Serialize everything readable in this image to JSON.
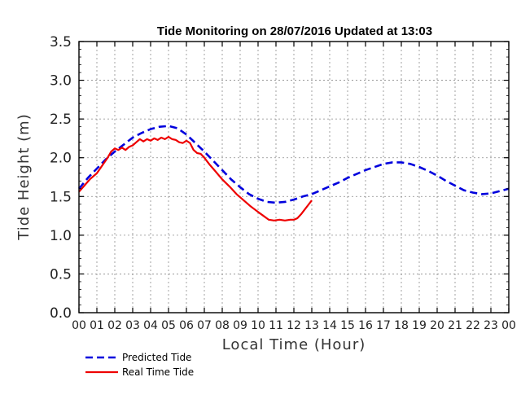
{
  "chart_data": {
    "type": "line",
    "title": "Tide Monitoring on 28/07/2016   Updated at  13:03",
    "xlabel": "Local Time (Hour)",
    "ylabel": "Tide Height (m)",
    "xlim": [
      0,
      24
    ],
    "ylim": [
      0,
      3.5
    ],
    "grid": true,
    "legend_position": "bottom-left",
    "x_ticks": [
      "00",
      "01",
      "02",
      "03",
      "04",
      "05",
      "06",
      "07",
      "08",
      "09",
      "10",
      "11",
      "12",
      "13",
      "14",
      "15",
      "16",
      "17",
      "18",
      "19",
      "20",
      "21",
      "22",
      "23",
      "00"
    ],
    "y_ticks": [
      "0.0",
      "0.5",
      "1.0",
      "1.5",
      "2.0",
      "2.5",
      "3.0",
      "3.5"
    ],
    "series": [
      {
        "name": "Predicted Tide",
        "color": "#0000dd",
        "style": "dashed",
        "x": [
          0,
          0.5,
          1,
          1.5,
          2,
          2.5,
          3,
          3.5,
          4,
          4.5,
          5,
          5.5,
          6,
          6.5,
          7,
          7.5,
          8,
          8.5,
          9,
          9.5,
          10,
          10.5,
          11,
          11.5,
          12,
          12.5,
          13,
          13.5,
          14,
          14.5,
          15,
          15.5,
          16,
          16.5,
          17,
          17.5,
          18,
          18.5,
          19,
          19.5,
          20,
          20.5,
          21,
          21.5,
          22,
          22.5,
          23,
          23.5,
          24
        ],
        "values": [
          1.6,
          1.74,
          1.86,
          1.98,
          2.08,
          2.17,
          2.26,
          2.32,
          2.37,
          2.4,
          2.41,
          2.38,
          2.3,
          2.19,
          2.08,
          1.96,
          1.84,
          1.72,
          1.62,
          1.53,
          1.47,
          1.43,
          1.42,
          1.43,
          1.46,
          1.5,
          1.53,
          1.58,
          1.63,
          1.68,
          1.74,
          1.79,
          1.84,
          1.88,
          1.92,
          1.94,
          1.94,
          1.92,
          1.88,
          1.83,
          1.77,
          1.7,
          1.64,
          1.58,
          1.55,
          1.53,
          1.54,
          1.57,
          1.6
        ]
      },
      {
        "name": "Real Time Tide",
        "color": "#ee0000",
        "style": "solid",
        "x": [
          0,
          0.3,
          0.6,
          1,
          1.3,
          1.6,
          1.8,
          2,
          2.2,
          2.4,
          2.6,
          2.8,
          3,
          3.2,
          3.4,
          3.6,
          3.8,
          4,
          4.2,
          4.4,
          4.6,
          4.8,
          5,
          5.2,
          5.4,
          5.6,
          5.8,
          6,
          6.2,
          6.4,
          6.6,
          6.8,
          7,
          7.3,
          7.6,
          8,
          8.4,
          8.8,
          9.2,
          9.6,
          10,
          10.3,
          10.6,
          10.9,
          11.2,
          11.5,
          11.8,
          12,
          12.2,
          12.4,
          12.6,
          12.8,
          13
        ],
        "values": [
          1.56,
          1.64,
          1.72,
          1.8,
          1.9,
          2.0,
          2.08,
          2.12,
          2.1,
          2.13,
          2.1,
          2.14,
          2.16,
          2.2,
          2.24,
          2.21,
          2.24,
          2.22,
          2.25,
          2.23,
          2.26,
          2.24,
          2.27,
          2.24,
          2.23,
          2.2,
          2.19,
          2.22,
          2.19,
          2.1,
          2.06,
          2.05,
          2.0,
          1.91,
          1.83,
          1.72,
          1.63,
          1.53,
          1.45,
          1.37,
          1.3,
          1.25,
          1.2,
          1.19,
          1.2,
          1.19,
          1.2,
          1.2,
          1.22,
          1.27,
          1.33,
          1.39,
          1.45
        ]
      }
    ]
  }
}
